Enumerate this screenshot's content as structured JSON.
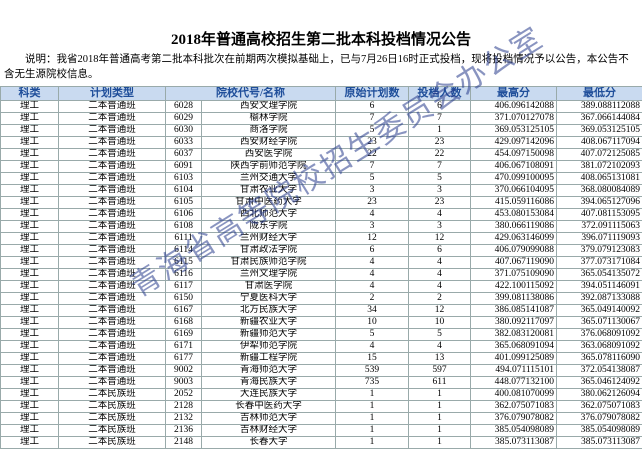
{
  "header": {
    "title": "2018年普通高校招生第二批本科投档情况公告",
    "note": "说明：我省2018年普通高考第二批本科批次在前期两次模拟基础上，已与7月26日16时正式投档，现将投档情况予以公告，本公告不含无生源院校信息。"
  },
  "table": {
    "columns": [
      "科类",
      "计划类型",
      "院校代号/名称",
      "原始计划数",
      "投档人数",
      "最高分",
      "最低分"
    ],
    "rows": [
      [
        "理工",
        "二本普通班",
        "6028",
        "西安文理学院",
        6,
        6,
        "406.096142088",
        "389.088112088"
      ],
      [
        "理工",
        "二本普通班",
        "6029",
        "榆林学院",
        7,
        7,
        "371.070127078",
        "367.066144084"
      ],
      [
        "理工",
        "二本普通班",
        "6030",
        "商洛学院",
        5,
        1,
        "369.053125105",
        "369.053125105"
      ],
      [
        "理工",
        "二本普通班",
        "6033",
        "西安财经学院",
        23,
        23,
        "429.097142096",
        "408.067117094"
      ],
      [
        "理工",
        "二本普通班",
        "6037",
        "西安医学院",
        22,
        22,
        "454.097150098",
        "407.072125085"
      ],
      [
        "理工",
        "二本普通班",
        "6091",
        "陕西学前师范学院",
        7,
        7,
        "406.067108091",
        "381.072102093"
      ],
      [
        "理工",
        "二本普通班",
        "6103",
        "兰州交通大学",
        5,
        5,
        "470.099100095",
        "408.065131081"
      ],
      [
        "理工",
        "二本普通班",
        "6104",
        "甘肃农业大学",
        3,
        3,
        "370.066104095",
        "368.080084089"
      ],
      [
        "理工",
        "二本普通班",
        "6105",
        "甘肃中医药大学",
        23,
        23,
        "415.059116086",
        "394.065127096"
      ],
      [
        "理工",
        "二本普通班",
        "6106",
        "西北师范大学",
        4,
        4,
        "453.080153084",
        "407.081153095"
      ],
      [
        "理工",
        "二本普通班",
        "6108",
        "陇东学院",
        3,
        3,
        "380.066119086",
        "372.091115063"
      ],
      [
        "理工",
        "二本普通班",
        "6111",
        "兰州财经大学",
        12,
        12,
        "429.063146099",
        "396.071119093"
      ],
      [
        "理工",
        "二本普通班",
        "6114",
        "甘肃政法学院",
        6,
        6,
        "406.079099088",
        "379.079123083"
      ],
      [
        "理工",
        "二本普通班",
        "6115",
        "甘肃民族师范学院",
        4,
        4,
        "407.067119090",
        "377.073171084"
      ],
      [
        "理工",
        "二本普通班",
        "6116",
        "兰州文理学院",
        4,
        4,
        "371.075109090",
        "365.054135072"
      ],
      [
        "理工",
        "二本普通班",
        "6117",
        "甘肃医学院",
        4,
        4,
        "422.100115092",
        "394.051146091"
      ],
      [
        "理工",
        "二本普通班",
        "6150",
        "宁夏医科大学",
        2,
        2,
        "399.081138086",
        "392.087133088"
      ],
      [
        "理工",
        "二本普通班",
        "6167",
        "北方民族大学",
        34,
        12,
        "386.085141087",
        "365.049140092"
      ],
      [
        "理工",
        "二本普通班",
        "6168",
        "新疆农业大学",
        10,
        10,
        "380.092117097",
        "365.071130067"
      ],
      [
        "理工",
        "二本普通班",
        "6169",
        "新疆师范大学",
        5,
        5,
        "382.083120081",
        "376.068091092"
      ],
      [
        "理工",
        "二本普通班",
        "6171",
        "伊犁师范学院",
        4,
        4,
        "365.068091094",
        "363.068091092"
      ],
      [
        "理工",
        "二本普通班",
        "6177",
        "新疆工程学院",
        15,
        13,
        "401.099125089",
        "365.078116090"
      ],
      [
        "理工",
        "二本普通班",
        "9002",
        "青海师范大学",
        539,
        597,
        "494.071115101",
        "372.054138087"
      ],
      [
        "理工",
        "二本普通班",
        "9003",
        "青海民族大学",
        735,
        611,
        "448.077132100",
        "365.046124092"
      ],
      [
        "理工",
        "二本民族班",
        "2052",
        "大连民族大学",
        1,
        1,
        "400.081070099",
        "380.062126094"
      ],
      [
        "理工",
        "二本民族班",
        "2128",
        "长春中医药大学",
        1,
        1,
        "362.075071083",
        "362.075071083"
      ],
      [
        "理工",
        "二本民族班",
        "2132",
        "吉林师范大学",
        1,
        1,
        "376.079078082",
        "376.079078082"
      ],
      [
        "理工",
        "二本民族班",
        "2136",
        "吉林财经大学",
        1,
        1,
        "385.054098089",
        "385.054098089"
      ],
      [
        "理工",
        "二本民族班",
        "2148",
        "长春大学",
        1,
        1,
        "385.073113087",
        "385.073113087"
      ]
    ]
  },
  "watermark": "青海省高等院校招生委员会办公室"
}
